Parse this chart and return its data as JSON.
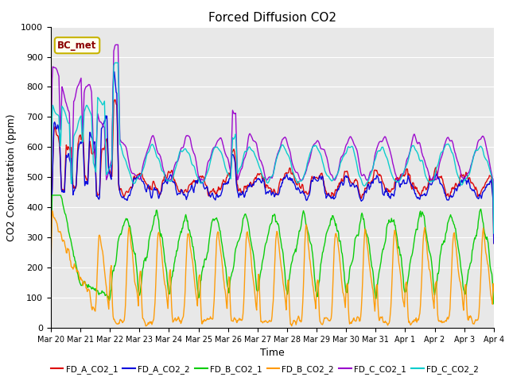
{
  "title": "Forced Diffusion CO2",
  "xlabel": "Time",
  "ylabel": "CO2 Concentration (ppm)",
  "ylim": [
    0,
    1000
  ],
  "background_color": "#ffffff",
  "plot_bg_color": "#e8e8e8",
  "annotation_text": "BC_met",
  "annotation_bg": "#fffff0",
  "annotation_border": "#c8b400",
  "series": [
    {
      "name": "FD_A_CO2_1",
      "color": "#dd0000",
      "lw": 1.0
    },
    {
      "name": "FD_A_CO2_2",
      "color": "#0000dd",
      "lw": 1.0
    },
    {
      "name": "FD_B_CO2_1",
      "color": "#00cc00",
      "lw": 1.0
    },
    {
      "name": "FD_B_CO2_2",
      "color": "#ff9900",
      "lw": 1.0
    },
    {
      "name": "FD_C_CO2_1",
      "color": "#9900cc",
      "lw": 1.0
    },
    {
      "name": "FD_C_CO2_2",
      "color": "#00cccc",
      "lw": 1.0
    }
  ],
  "tick_labels": [
    "Mar 20",
    "Mar 21",
    "Mar 22",
    "Mar 23",
    "Mar 24",
    "Mar 25",
    "Mar 26",
    "Mar 27",
    "Mar 28",
    "Mar 29",
    "Mar 30",
    "Mar 31",
    "Apr 1",
    "Apr 2",
    "Apr 3",
    "Apr 4"
  ],
  "yticks": [
    0,
    100,
    200,
    300,
    400,
    500,
    600,
    700,
    800,
    900,
    1000
  ],
  "grid_color": "#ffffff",
  "grid_lw": 0.8
}
